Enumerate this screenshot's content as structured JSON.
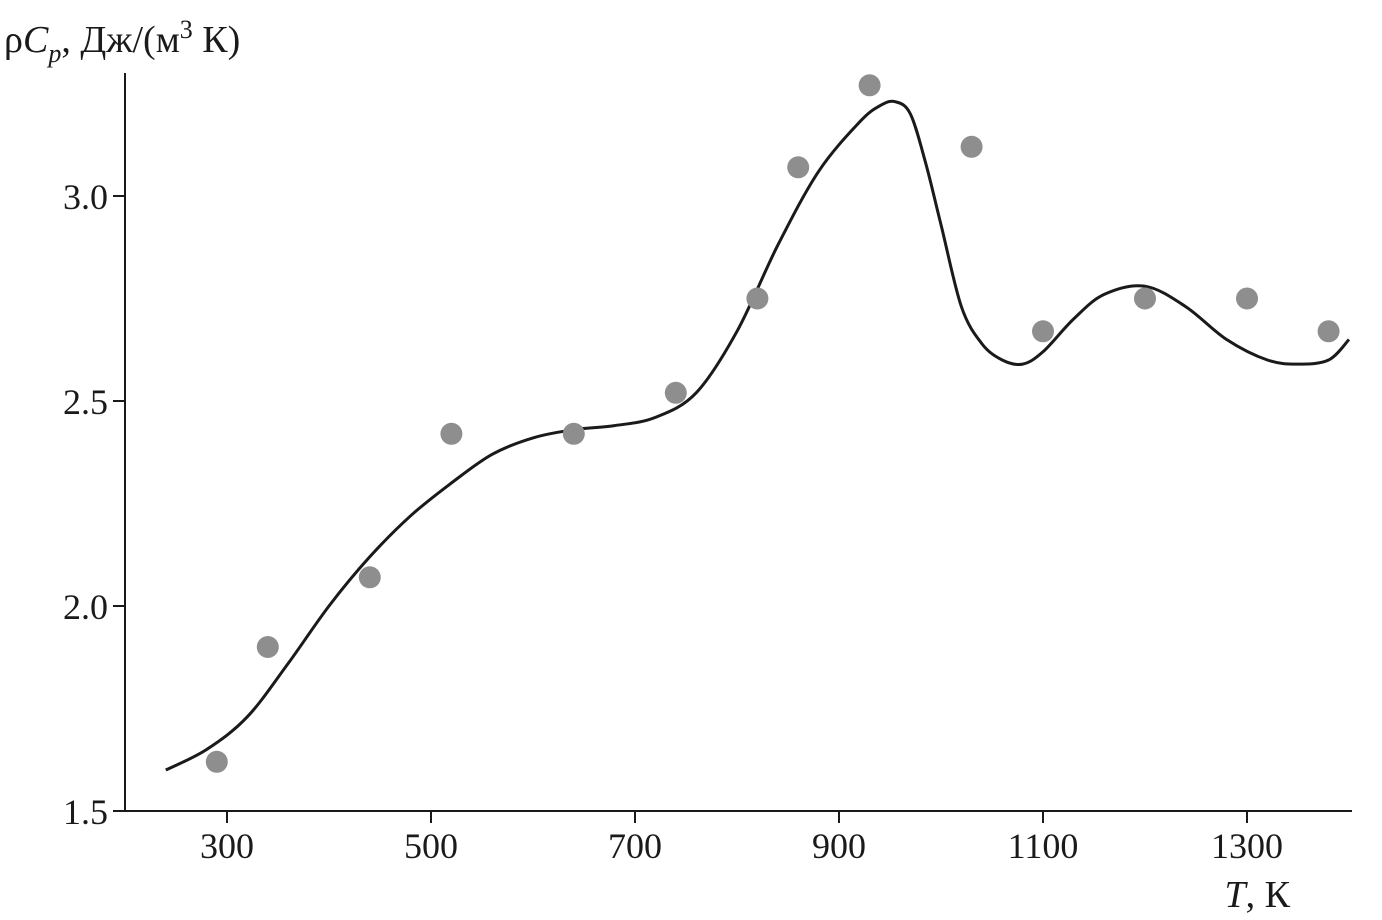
{
  "chart_data": {
    "type": "scatter",
    "ylabel": {
      "prefix": "ρ",
      "symbol": "C",
      "subscript": "p",
      "unit_start": ", Дж/(м",
      "superscript": "3",
      "unit_end": " К)"
    },
    "xlabel": {
      "symbol": "T",
      "unit": ", К"
    },
    "xlim": [
      200,
      1400
    ],
    "ylim": [
      1.5,
      3.3
    ],
    "x_ticks": [
      300,
      500,
      700,
      900,
      1100,
      1300
    ],
    "x_tick_labels": [
      "300",
      "500",
      "700",
      "900",
      "1100",
      "1300"
    ],
    "y_ticks": [
      1.5,
      2.0,
      2.5,
      3.0
    ],
    "y_tick_labels": [
      "1.5",
      "2.0",
      "2.5",
      "3.0"
    ],
    "grid": false,
    "series": [
      {
        "kind": "points",
        "color": "#8e8e8e",
        "x": [
          290,
          340,
          440,
          520,
          640,
          740,
          820,
          860,
          930,
          1030,
          1100,
          1200,
          1300,
          1380
        ],
        "y": [
          1.62,
          1.9,
          2.07,
          2.42,
          2.42,
          2.52,
          2.75,
          3.07,
          3.27,
          3.12,
          2.67,
          2.75,
          2.75,
          2.67
        ]
      },
      {
        "kind": "fit_curve",
        "color": "#1a1a1a",
        "x": [
          240,
          280,
          320,
          360,
          400,
          440,
          480,
          520,
          560,
          600,
          640,
          680,
          720,
          760,
          800,
          840,
          880,
          920,
          940,
          955,
          970,
          985,
          1000,
          1020,
          1040,
          1060,
          1080,
          1100,
          1130,
          1160,
          1200,
          1240,
          1280,
          1320,
          1350,
          1380,
          1400
        ],
        "y": [
          1.6,
          1.65,
          1.73,
          1.86,
          2.0,
          2.12,
          2.22,
          2.3,
          2.37,
          2.41,
          2.43,
          2.44,
          2.46,
          2.52,
          2.67,
          2.88,
          3.06,
          3.18,
          3.22,
          3.23,
          3.2,
          3.08,
          2.93,
          2.73,
          2.64,
          2.6,
          2.59,
          2.62,
          2.7,
          2.76,
          2.78,
          2.73,
          2.65,
          2.6,
          2.59,
          2.6,
          2.65
        ]
      }
    ]
  }
}
